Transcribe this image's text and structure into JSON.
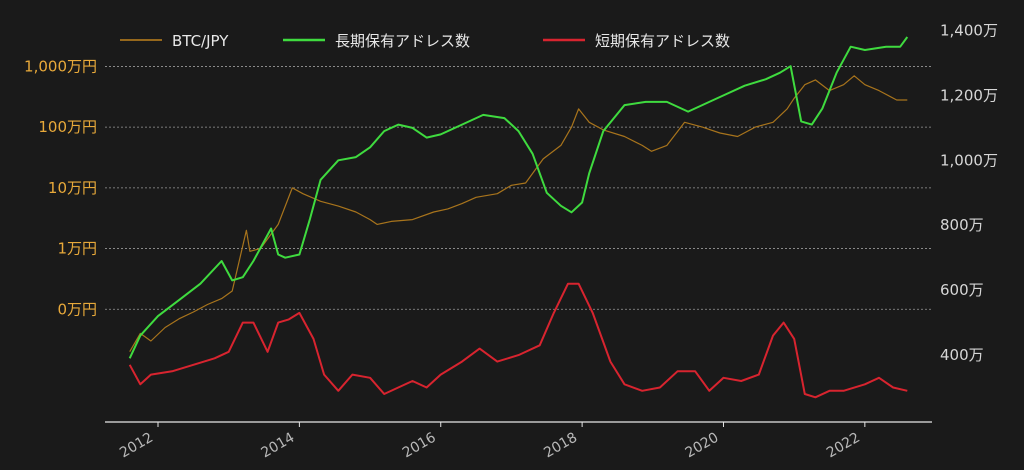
{
  "chart_data": {
    "type": "line",
    "title": "",
    "xlabel": "",
    "ylabel_left": "",
    "ylabel_right": "",
    "x_ticks": [
      "2012",
      "2014",
      "2016",
      "2018",
      "2020",
      "2022"
    ],
    "left_axis": {
      "scale": "log",
      "unit": "JPY",
      "ticks": [
        {
          "value": 10000000,
          "label": "1,000万円"
        },
        {
          "value": 1000000,
          "label": "100万円"
        },
        {
          "value": 100000,
          "label": "10万円"
        },
        {
          "value": 10000,
          "label": "1万円"
        },
        {
          "value": 1000,
          "label": "0万円"
        }
      ],
      "ylim": [
        15,
        50000000
      ]
    },
    "right_axis": {
      "scale": "linear",
      "ticks": [
        {
          "value": 14000000,
          "label": "1,400万"
        },
        {
          "value": 12000000,
          "label": "1,200万"
        },
        {
          "value": 10000000,
          "label": "1,000万"
        },
        {
          "value": 8000000,
          "label": "800万"
        },
        {
          "value": 6000000,
          "label": "600万"
        },
        {
          "value": 4000000,
          "label": "400万"
        }
      ],
      "ylim": [
        2000000,
        14200000
      ]
    },
    "legend_position": "top",
    "grid": true,
    "series": [
      {
        "name": "BTC/JPY",
        "axis": "left",
        "color": "#a8741c",
        "x": [
          2011.6,
          2011.75,
          2011.9,
          2012.1,
          2012.3,
          2012.5,
          2012.7,
          2012.9,
          2013.05,
          2013.25,
          2013.3,
          2013.45,
          2013.7,
          2013.9,
          2014.05,
          2014.3,
          2014.55,
          2014.8,
          2015.0,
          2015.1,
          2015.3,
          2015.6,
          2015.9,
          2016.1,
          2016.3,
          2016.5,
          2016.8,
          2017.0,
          2017.2,
          2017.45,
          2017.7,
          2017.85,
          2017.95,
          2018.1,
          2018.3,
          2018.6,
          2018.85,
          2018.98,
          2019.2,
          2019.45,
          2019.7,
          2019.95,
          2020.2,
          2020.45,
          2020.7,
          2020.9,
          2021.0,
          2021.15,
          2021.3,
          2021.5,
          2021.7,
          2021.85,
          2022.0,
          2022.2,
          2022.45,
          2022.6
        ],
        "values": [
          200,
          400,
          300,
          500,
          700,
          900,
          1200,
          1500,
          2000,
          20000,
          9000,
          10000,
          25000,
          100000,
          80000,
          60000,
          50000,
          40000,
          30000,
          25000,
          28000,
          30000,
          40000,
          45000,
          55000,
          70000,
          80000,
          110000,
          120000,
          300000,
          500000,
          1000000,
          2000000,
          1200000,
          900000,
          700000,
          500000,
          400000,
          500000,
          1200000,
          1000000,
          800000,
          700000,
          1000000,
          1200000,
          2000000,
          3000000,
          5000000,
          6000000,
          4000000,
          5000000,
          7000000,
          5000000,
          4000000,
          2800000,
          2800000
        ]
      },
      {
        "name": "長期保有アドレス数",
        "axis": "right",
        "color": "#3fdb3f",
        "x": [
          2011.6,
          2011.75,
          2012.0,
          2012.3,
          2012.6,
          2012.9,
          2013.05,
          2013.2,
          2013.35,
          2013.6,
          2013.7,
          2013.8,
          2014.0,
          2014.15,
          2014.3,
          2014.55,
          2014.8,
          2015.0,
          2015.2,
          2015.4,
          2015.6,
          2015.8,
          2016.0,
          2016.3,
          2016.6,
          2016.9,
          2017.1,
          2017.3,
          2017.5,
          2017.7,
          2017.85,
          2018.0,
          2018.1,
          2018.3,
          2018.6,
          2018.9,
          2019.2,
          2019.5,
          2019.8,
          2020.0,
          2020.3,
          2020.6,
          2020.8,
          2020.95,
          2021.1,
          2021.25,
          2021.4,
          2021.6,
          2021.8,
          2022.0,
          2022.3,
          2022.5,
          2022.6
        ],
        "values": [
          3900000,
          4600000,
          5200000,
          5700000,
          6200000,
          6900000,
          6300000,
          6400000,
          6900000,
          7900000,
          7100000,
          7000000,
          7100000,
          8200000,
          9400000,
          10000000,
          10100000,
          10400000,
          10900000,
          11100000,
          11000000,
          10700000,
          10800000,
          11100000,
          11400000,
          11300000,
          10900000,
          10200000,
          9000000,
          8600000,
          8400000,
          8700000,
          9600000,
          10900000,
          11700000,
          11800000,
          11800000,
          11500000,
          11800000,
          12000000,
          12300000,
          12500000,
          12700000,
          12900000,
          11200000,
          11100000,
          11600000,
          12700000,
          13500000,
          13400000,
          13500000,
          13500000,
          13800000
        ]
      },
      {
        "name": "短期保有アドレス数",
        "axis": "right",
        "color": "#d8242f",
        "x": [
          2011.6,
          2011.75,
          2011.9,
          2012.2,
          2012.5,
          2012.8,
          2013.0,
          2013.2,
          2013.35,
          2013.55,
          2013.7,
          2013.85,
          2014.0,
          2014.2,
          2014.35,
          2014.55,
          2014.75,
          2015.0,
          2015.2,
          2015.4,
          2015.6,
          2015.8,
          2016.0,
          2016.3,
          2016.55,
          2016.8,
          2017.1,
          2017.4,
          2017.6,
          2017.8,
          2017.95,
          2018.15,
          2018.4,
          2018.6,
          2018.85,
          2019.1,
          2019.35,
          2019.6,
          2019.8,
          2020.0,
          2020.25,
          2020.5,
          2020.7,
          2020.85,
          2021.0,
          2021.15,
          2021.3,
          2021.5,
          2021.7,
          2022.0,
          2022.2,
          2022.4,
          2022.6
        ],
        "values": [
          3700000,
          3100000,
          3400000,
          3500000,
          3700000,
          3900000,
          4100000,
          5000000,
          5000000,
          4100000,
          5000000,
          5100000,
          5300000,
          4500000,
          3400000,
          2900000,
          3400000,
          3300000,
          2800000,
          3000000,
          3200000,
          3000000,
          3400000,
          3800000,
          4200000,
          3800000,
          4000000,
          4300000,
          5300000,
          6200000,
          6200000,
          5300000,
          3800000,
          3100000,
          2900000,
          3000000,
          3500000,
          3500000,
          2900000,
          3300000,
          3200000,
          3400000,
          4600000,
          5000000,
          4500000,
          2800000,
          2700000,
          2900000,
          2900000,
          3100000,
          3300000,
          3000000,
          2900000
        ]
      }
    ]
  }
}
